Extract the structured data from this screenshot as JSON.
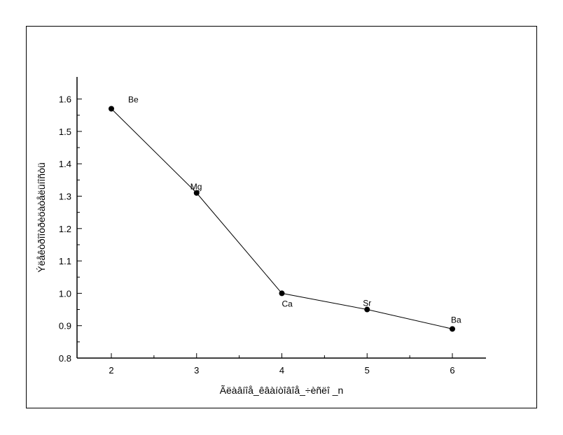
{
  "chart_data": {
    "type": "line",
    "title": "",
    "xlabel": "Ãëàâíîå_êâàíòîâîå_÷èñëî _n",
    "ylabel": "Ýëåêòðîîòðèöàòåëüíîñòü",
    "xlim": [
      1.6,
      6.4
    ],
    "ylim": [
      0.8,
      1.65
    ],
    "x_ticks": [
      2,
      3,
      4,
      5,
      6
    ],
    "y_ticks": [
      0.8,
      0.9,
      1.0,
      1.1,
      1.2,
      1.3,
      1.4,
      1.5,
      1.6
    ],
    "x_tick_labels": [
      "2",
      "3",
      "4",
      "5",
      "6"
    ],
    "y_tick_labels": [
      "0.8",
      "0.9",
      "1.0",
      "1.1",
      "1.2",
      "1.3",
      "1.4",
      "1.5",
      "1.6"
    ],
    "grid": false,
    "series": [
      {
        "x": [
          2,
          3,
          4,
          5,
          6
        ],
        "y": [
          1.57,
          1.31,
          1.0,
          0.95,
          0.89
        ],
        "labels": [
          "Be",
          "Mg",
          "Ca",
          "Sr",
          "Ba"
        ],
        "color": "#000000"
      }
    ]
  }
}
